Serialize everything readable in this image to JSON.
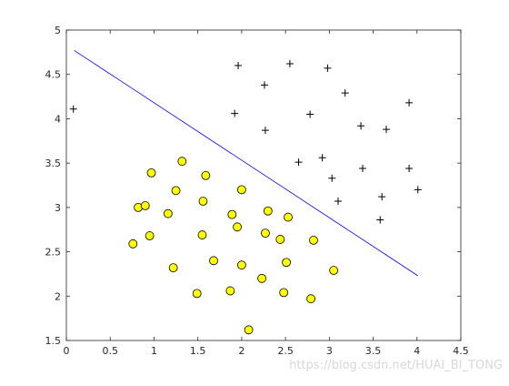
{
  "chart_data": {
    "type": "scatter",
    "xlim": [
      0,
      4.5
    ],
    "xticks": [
      0,
      0.5,
      1,
      1.5,
      2,
      2.5,
      3,
      3.5,
      4,
      4.5
    ],
    "ylim": [
      1.5,
      5
    ],
    "yticks": [
      1.5,
      2,
      2.5,
      3,
      3.5,
      4,
      4.5,
      5
    ],
    "series": [
      {
        "marker": "+",
        "color": "#000000",
        "x": [
          0.08,
          1.96,
          2.55,
          2.98,
          2.26,
          3.18,
          3.91,
          1.92,
          2.78,
          2.27,
          3.36,
          3.65,
          2.65,
          2.92,
          3.38,
          3.91,
          3.03,
          4.01,
          3.6,
          3.1,
          3.58
        ],
        "values": [
          4.11,
          4.6,
          4.62,
          4.57,
          4.38,
          4.29,
          4.18,
          4.06,
          4.05,
          3.87,
          3.92,
          3.88,
          3.51,
          3.56,
          3.44,
          3.44,
          3.33,
          3.2,
          3.12,
          3.07,
          2.86
        ]
      },
      {
        "marker": "o",
        "color": "#ffff00",
        "x": [
          0.97,
          1.32,
          1.59,
          1.25,
          2.0,
          0.82,
          0.9,
          1.56,
          1.16,
          2.3,
          1.89,
          2.53,
          1.95,
          0.95,
          1.55,
          2.27,
          2.44,
          0.76,
          2.82,
          1.68,
          2.51,
          2.0,
          1.22,
          3.05,
          2.23,
          1.49,
          1.87,
          2.48,
          2.79,
          2.08
        ],
        "values": [
          3.39,
          3.52,
          3.36,
          3.19,
          3.2,
          3.0,
          3.02,
          3.07,
          2.93,
          2.96,
          2.92,
          2.89,
          2.78,
          2.68,
          2.69,
          2.71,
          2.64,
          2.59,
          2.63,
          2.4,
          2.38,
          2.35,
          2.32,
          2.29,
          2.2,
          2.03,
          2.06,
          2.04,
          1.97,
          1.62
        ]
      }
    ],
    "lines": [
      {
        "color": "#0000ff",
        "x": [
          0.09,
          4.01
        ],
        "values": [
          4.77,
          2.23
        ]
      }
    ]
  },
  "watermark": "https://blog.csdn.net/HUAI_BI_TONG"
}
